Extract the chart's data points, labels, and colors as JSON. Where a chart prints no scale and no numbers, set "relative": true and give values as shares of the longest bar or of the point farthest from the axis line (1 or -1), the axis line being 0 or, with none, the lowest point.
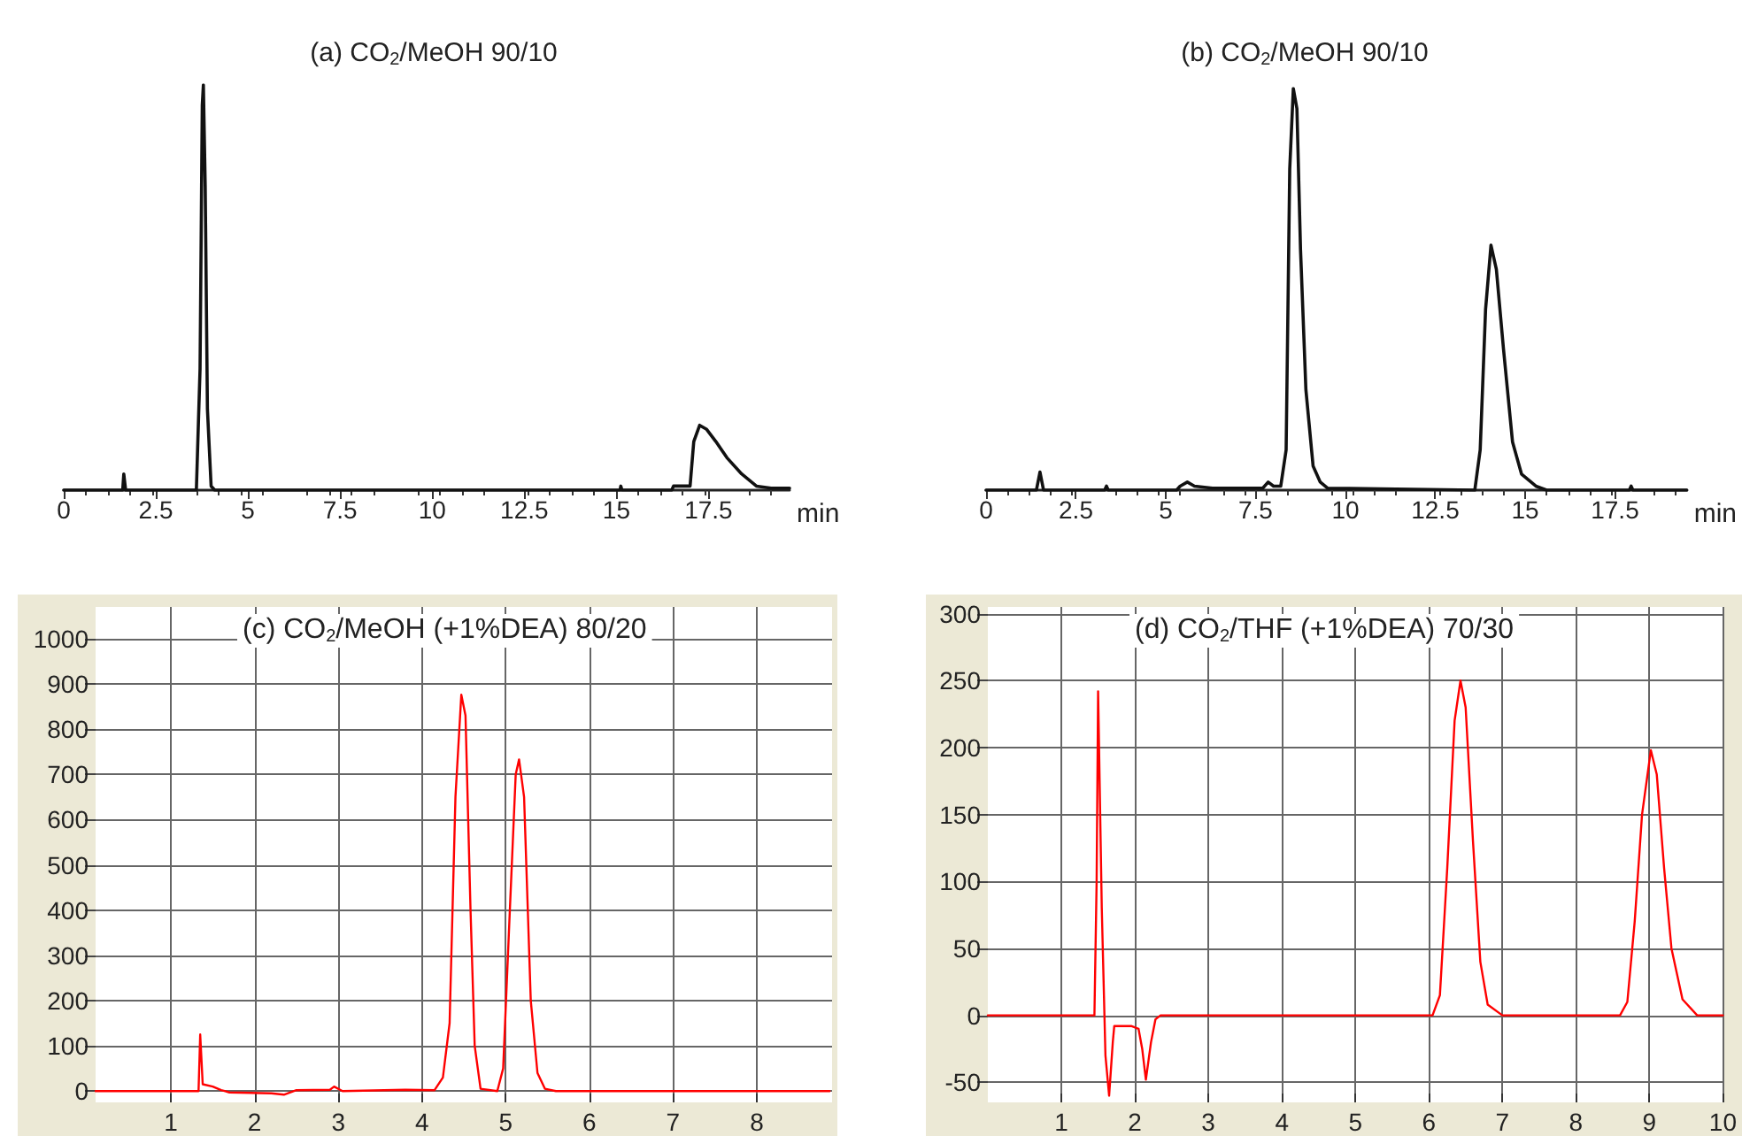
{
  "chart_data": [
    {
      "type": "line",
      "title": "(a) CO$_{2}$/MeOH 90/10",
      "xlabel": "min",
      "relative": true,
      "grid": false,
      "tick_labels": "x",
      "marker": "none",
      "color": "#111111",
      "xlim": [
        0,
        19.7
      ],
      "xticks": [
        0,
        2.5,
        5,
        7.5,
        10,
        12.5,
        15,
        17.5
      ],
      "x": [
        0,
        1.6,
        1.63,
        1.68,
        3.6,
        3.7,
        3.76,
        3.79,
        3.84,
        3.9,
        4.0,
        4.1,
        15.1,
        15.12,
        15.15,
        16.5,
        16.55,
        17.0,
        17.1,
        17.26,
        17.45,
        17.7,
        18.0,
        18.4,
        18.8,
        19.2,
        19.7
      ],
      "values": [
        0,
        0,
        0.04,
        0,
        0,
        0.3,
        0.95,
        1,
        0.75,
        0.2,
        0.01,
        0,
        0,
        0.01,
        0,
        0,
        0.01,
        0.01,
        0.12,
        0.16,
        0.15,
        0.12,
        0.08,
        0.04,
        0.01,
        0.005,
        0.005
      ]
    },
    {
      "type": "line",
      "title": "(b) CO$_{2}$/MeOH 90/10",
      "xlabel": "min",
      "relative": true,
      "grid": false,
      "tick_labels": "x",
      "marker": "none",
      "color": "#111111",
      "xlim": [
        0,
        19.5
      ],
      "xticks": [
        0,
        2.5,
        5,
        7.5,
        10,
        12.5,
        15,
        17.5
      ],
      "x": [
        0,
        1.4,
        1.5,
        1.6,
        3.3,
        3.35,
        3.4,
        5.3,
        5.4,
        5.6,
        5.8,
        6.3,
        7.7,
        7.85,
        8.0,
        8.2,
        8.35,
        8.45,
        8.55,
        8.65,
        8.75,
        8.9,
        9.1,
        9.3,
        9.5,
        13.6,
        13.75,
        13.9,
        14.05,
        14.2,
        14.4,
        14.65,
        14.9,
        15.3,
        15.6,
        17.9,
        17.95,
        18.0,
        19.5
      ],
      "values": [
        0,
        0,
        0.045,
        0,
        0,
        0.01,
        0,
        0,
        0.01,
        0.02,
        0.01,
        0.005,
        0.005,
        0.02,
        0.01,
        0.01,
        0.1,
        0.8,
        1,
        0.95,
        0.6,
        0.25,
        0.06,
        0.02,
        0.005,
        0,
        0.1,
        0.45,
        0.61,
        0.55,
        0.35,
        0.12,
        0.04,
        0.01,
        0,
        0,
        0.01,
        0,
        0
      ]
    },
    {
      "type": "line",
      "title": "(c) CO$_{2}$/MeOH (+1%DEA) 80/20",
      "grid": true,
      "marker": "none",
      "color": "#ff0000",
      "xlim": [
        0.1,
        8.9
      ],
      "xticks": [
        1,
        2,
        3,
        4,
        5,
        6,
        7,
        8
      ],
      "ylim": [
        -25,
        1070
      ],
      "yticks": [
        0,
        100,
        200,
        300,
        400,
        500,
        600,
        700,
        800,
        900,
        1000
      ],
      "x": [
        0.1,
        1.33,
        1.35,
        1.38,
        1.5,
        1.6,
        1.7,
        2.2,
        2.35,
        2.5,
        2.9,
        2.95,
        3.05,
        3.8,
        4.15,
        4.25,
        4.33,
        4.4,
        4.47,
        4.52,
        4.58,
        4.63,
        4.7,
        4.9,
        4.97,
        5.05,
        5.12,
        5.16,
        5.22,
        5.3,
        5.38,
        5.47,
        5.6,
        8.87
      ],
      "values": [
        0,
        0,
        125,
        15,
        10,
        2,
        -3,
        -5,
        -8,
        2,
        3,
        10,
        0,
        3,
        2,
        30,
        150,
        650,
        876,
        830,
        400,
        100,
        5,
        0,
        50,
        400,
        700,
        733,
        650,
        200,
        40,
        5,
        0,
        0
      ]
    },
    {
      "type": "line",
      "title": "(d) CO$_{2}$/THF (+1%DEA) 70/30",
      "grid": true,
      "marker": "none",
      "color": "#ff0000",
      "xlim": [
        0,
        10
      ],
      "xticks": [
        1,
        2,
        3,
        4,
        5,
        6,
        7,
        8,
        9,
        10
      ],
      "ylim": [
        -65,
        305
      ],
      "yticks": [
        -50,
        0,
        50,
        100,
        150,
        200,
        250,
        300
      ],
      "x": [
        0,
        1.45,
        1.48,
        1.5,
        1.55,
        1.6,
        1.65,
        1.7,
        1.72,
        1.95,
        2.05,
        2.1,
        2.15,
        2.22,
        2.28,
        2.35,
        6.05,
        6.15,
        6.25,
        6.35,
        6.43,
        6.5,
        6.6,
        6.7,
        6.8,
        7.0,
        8.6,
        8.7,
        8.8,
        8.9,
        9.02,
        9.1,
        9.2,
        9.3,
        9.45,
        9.65,
        10
      ],
      "values": [
        0,
        0,
        100,
        242,
        80,
        -30,
        -60,
        -20,
        -8,
        -8,
        -10,
        -25,
        -48,
        -20,
        -3,
        0,
        0,
        15,
        110,
        220,
        250,
        230,
        130,
        40,
        8,
        0,
        0,
        10,
        70,
        150,
        198,
        180,
        110,
        50,
        12,
        0,
        0
      ]
    }
  ]
}
